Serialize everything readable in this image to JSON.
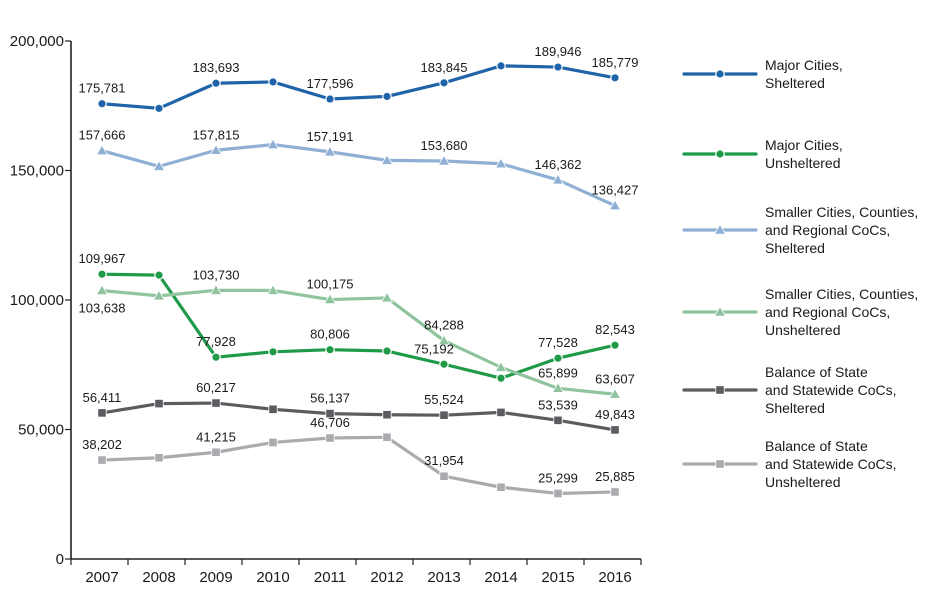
{
  "chart_data": {
    "type": "line",
    "categories": [
      "2007",
      "2008",
      "2009",
      "2010",
      "2011",
      "2012",
      "2013",
      "2014",
      "2015",
      "2016"
    ],
    "ylim": [
      0,
      200000
    ],
    "yticks": [
      0,
      50000,
      100000,
      150000,
      200000
    ],
    "ytick_labels": [
      "0",
      "50,000",
      "100,000",
      "150,000",
      "200,000"
    ],
    "grid": false,
    "legend_position": "right",
    "series": [
      {
        "name": "Major Cities, Sheltered",
        "legend_lines": [
          "Major Cities,",
          "Sheltered"
        ],
        "color": "#1f63a8",
        "marker": "circle",
        "values": [
          175781,
          174000,
          183693,
          184200,
          177596,
          178600,
          183845,
          190400,
          189946,
          185779
        ],
        "labels": [
          "175,781",
          null,
          "183,693",
          null,
          "177,596",
          null,
          "183,845",
          null,
          "189,946",
          "185,779"
        ]
      },
      {
        "name": "Major Cities, Unsheltered",
        "legend_lines": [
          "Major Cities,",
          "Unsheltered"
        ],
        "color": "#1f9a48",
        "marker": "circle",
        "values": [
          109967,
          109600,
          77928,
          80000,
          80806,
          80300,
          75192,
          69800,
          77528,
          82543
        ],
        "labels": [
          "109,967",
          null,
          "77,928",
          null,
          "80,806",
          null,
          "75,192",
          null,
          "77,528",
          "82,543"
        ]
      },
      {
        "name": "Smaller Cities, Counties, and Regional CoCs, Sheltered",
        "legend_lines": [
          "Smaller Cities, Counties,",
          "and Regional CoCs,",
          "Sheltered"
        ],
        "color": "#8fb0d4",
        "marker": "triangle",
        "values": [
          157666,
          151600,
          157815,
          160000,
          157191,
          153900,
          153680,
          152600,
          146362,
          136427
        ],
        "labels": [
          "157,666",
          null,
          "157,815",
          null,
          "157,191",
          null,
          "153,680",
          null,
          "146,362",
          "136,427"
        ]
      },
      {
        "name": "Smaller Cities, Counties, and Regional CoCs, Unsheltered",
        "legend_lines": [
          "Smaller Cities, Counties,",
          "and Regional CoCs,",
          "Unsheltered"
        ],
        "color": "#8fc49f",
        "marker": "triangle",
        "values": [
          103638,
          101600,
          103730,
          103700,
          100175,
          100800,
          84288,
          74000,
          65899,
          63607
        ],
        "labels": [
          "103,638",
          null,
          "103,730",
          null,
          "100,175",
          null,
          "84,288",
          null,
          "65,899",
          "63,607"
        ]
      },
      {
        "name": "Balance of State and Statewide CoCs, Sheltered",
        "legend_lines": [
          "Balance of State",
          "and Statewide CoCs,",
          "Sheltered"
        ],
        "color": "#5a5c5f",
        "marker": "square",
        "values": [
          56411,
          60000,
          60217,
          57800,
          56137,
          55700,
          55524,
          56600,
          53539,
          49843
        ],
        "labels": [
          "56,411",
          null,
          "60,217",
          null,
          "56,137",
          null,
          "55,524",
          null,
          "53,539",
          "49,843"
        ]
      },
      {
        "name": "Balance of State and Statewide CoCs, Unsheltered",
        "legend_lines": [
          "Balance of State",
          "and Statewide CoCs,",
          "Unsheltered"
        ],
        "color": "#a9abae",
        "marker": "square",
        "values": [
          38202,
          39100,
          41215,
          45000,
          46706,
          47000,
          31954,
          27700,
          25299,
          25885
        ],
        "labels": [
          "38,202",
          null,
          "41,215",
          null,
          "46,706",
          null,
          "31,954",
          null,
          "25,299",
          "25,885"
        ]
      }
    ]
  }
}
